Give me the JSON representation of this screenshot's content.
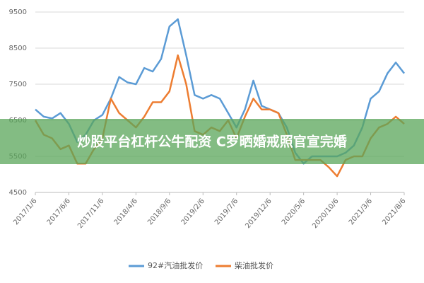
{
  "chart_data": {
    "type": "line",
    "categories": [
      "2017/1/6",
      null,
      null,
      null,
      "2017/6/6",
      null,
      null,
      null,
      "2017/11/6",
      null,
      null,
      null,
      "2018/4/6",
      null,
      null,
      null,
      "2018/9/6",
      null,
      null,
      null,
      "2019/2/6",
      null,
      null,
      null,
      "2019/7/6",
      null,
      null,
      null,
      "2019/12/6",
      null,
      null,
      null,
      "2020/5/6",
      null,
      null,
      null,
      "2020/10/6",
      null,
      null,
      null,
      "2021/3/6",
      null,
      null,
      null,
      "2021/8/6"
    ],
    "series": [
      {
        "name": "92#汽油批发价",
        "color": "#5b9bd5",
        "values": [
          6800,
          6600,
          6550,
          6700,
          6400,
          5900,
          6100,
          6500,
          6650,
          7100,
          7700,
          7550,
          7500,
          7950,
          7850,
          8200,
          9100,
          9300,
          8300,
          7200,
          7100,
          7200,
          7100,
          6700,
          6300,
          6800,
          7600,
          6900,
          6800,
          6700,
          6300,
          5600,
          5300,
          5500,
          5500,
          5500,
          5500,
          5600,
          5800,
          6300,
          7100,
          7300,
          7800,
          8100,
          7800
        ]
      },
      {
        "name": "柴油批发价",
        "color": "#ed7d31",
        "values": [
          6500,
          6100,
          6000,
          5700,
          5800,
          5300,
          5300,
          5700,
          6000,
          7100,
          6700,
          6500,
          6300,
          6600,
          7000,
          7000,
          7300,
          8300,
          7500,
          6200,
          6100,
          6300,
          6200,
          6500,
          6000,
          6600,
          7100,
          6800,
          6800,
          6700,
          6100,
          5400,
          5400,
          5400,
          5400,
          5200,
          4950,
          5400,
          5500,
          5500,
          6000,
          6300,
          6400,
          6600,
          6400
        ]
      }
    ],
    "ylim": [
      4500,
      9500
    ],
    "yticks": [
      4500,
      5500,
      6500,
      7500,
      8500,
      9500
    ],
    "grid": true,
    "annotation": "炒股平台杠杆公牛配资 C罗晒婚戒照官宣完婚"
  }
}
